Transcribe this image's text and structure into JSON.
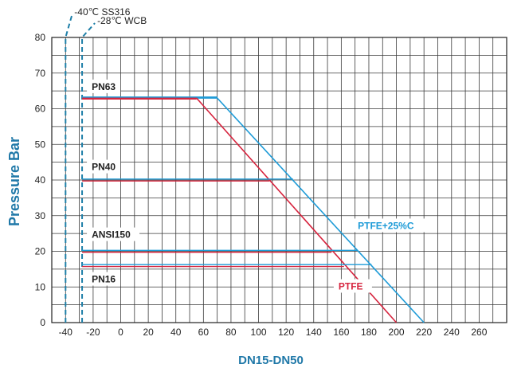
{
  "chart_data": {
    "type": "line",
    "xlabel": "DN15-DN50",
    "ylabel": "Pressure Bar",
    "xlim": [
      -50,
      280
    ],
    "ylim": [
      0,
      80
    ],
    "x_ticks": [
      -40,
      -20,
      0,
      20,
      40,
      60,
      80,
      100,
      120,
      140,
      160,
      180,
      200,
      220,
      240,
      260
    ],
    "y_ticks": [
      0,
      10,
      20,
      30,
      40,
      50,
      60,
      70,
      80
    ],
    "grid": true,
    "temperature_limits": [
      {
        "x": -40,
        "label": "-40℃ SS316"
      },
      {
        "x": -28,
        "label": "-28℃ WCB"
      }
    ],
    "series": [
      {
        "name": "PTFE+25%C",
        "color": "#1e9bd7",
        "points": [
          [
            -28,
            63
          ],
          [
            70,
            63
          ],
          [
            220,
            0
          ]
        ]
      },
      {
        "name": "PTFE",
        "color": "#d6243e",
        "points": [
          [
            -28,
            63
          ],
          [
            55,
            63
          ],
          [
            200,
            0
          ]
        ]
      }
    ],
    "pressure_classes": [
      {
        "label": "PN63",
        "value": 63,
        "ptfe_end_x": 55,
        "ptfe_c_end_x": 70
      },
      {
        "label": "PN40",
        "value": 40,
        "ptfe_end_x": 108,
        "ptfe_c_end_x": 125
      },
      {
        "label": "ANSI150",
        "value": 20,
        "ptfe_end_x": 153,
        "ptfe_c_end_x": 172
      },
      {
        "label": "PN16",
        "value": 16,
        "ptfe_end_x": 162,
        "ptfe_c_end_x": 182
      }
    ]
  }
}
